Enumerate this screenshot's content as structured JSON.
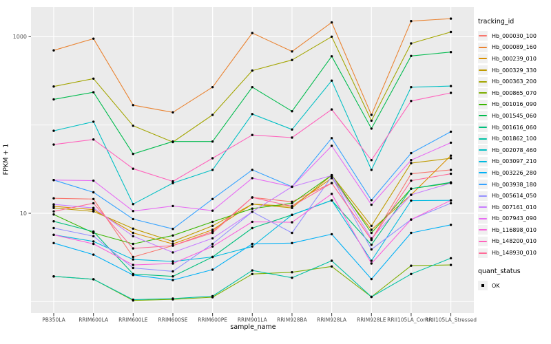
{
  "chart_data": {
    "type": "line",
    "title": "",
    "xlabel": "sample_name",
    "ylabel": "FPKM + 1",
    "x_categories": [
      "PB350LA",
      "RRIM600LA",
      "RRIM600LE",
      "RRIM600SE",
      "RRIM600PE",
      "RRIM901LA",
      "RRIM928BA",
      "RRIM928LA",
      "RRIM928LE",
      "RRII105LA_Control",
      "RRII105LA_Stressed"
    ],
    "y_axis": {
      "scale": "log10",
      "tick_labels": [
        "1000",
        "10"
      ],
      "tick_values": [
        1000,
        10
      ],
      "gridline_values": [
        1,
        10,
        100,
        1000
      ],
      "range_approx": [
        1,
        1700
      ]
    },
    "legend_position": "right",
    "grid": true,
    "panel_background": "#EBEBEB",
    "gridline_color": "#FFFFFF",
    "point_color": "#000000",
    "series": [
      {
        "name": "Hb_000030_100",
        "color": "#F8766D",
        "values": [
          14.8,
          14.5,
          3.2,
          4.3,
          6.2,
          15.1,
          13.5,
          22,
          5.0,
          28,
          31
        ]
      },
      {
        "name": "Hb_000089_160",
        "color": "#EA8331",
        "values": [
          700,
          950,
          168,
          139,
          268,
          1100,
          680,
          1450,
          130,
          1500,
          1600
        ]
      },
      {
        "name": "Hb_000239_010",
        "color": "#D89000",
        "values": [
          12.0,
          11.0,
          6.0,
          4.5,
          6.5,
          12.7,
          12.0,
          25,
          6.5,
          16.2,
          45
        ]
      },
      {
        "name": "Hb_000329_330",
        "color": "#C09B00",
        "values": [
          11.5,
          10.5,
          6.7,
          4.8,
          7.2,
          12.7,
          11.5,
          27,
          7.2,
          37,
          42
        ]
      },
      {
        "name": "Hb_000363_200",
        "color": "#A3A500",
        "values": [
          273,
          335,
          98,
          64,
          130,
          413,
          545,
          1000,
          112,
          840,
          1130
        ]
      },
      {
        "name": "Hb_000865_070",
        "color": "#7CAE00",
        "values": [
          1.93,
          1.79,
          1.03,
          1.06,
          1.12,
          2.05,
          2.15,
          2.5,
          1.13,
          2.55,
          2.6
        ]
      },
      {
        "name": "Hb_001016_090",
        "color": "#39B600",
        "values": [
          9.7,
          6.0,
          4.5,
          5.6,
          8.0,
          11.3,
          13.0,
          27,
          6.0,
          19,
          22
        ]
      },
      {
        "name": "Hb_001545_060",
        "color": "#00BB4E",
        "values": [
          195,
          235,
          47,
          65,
          65,
          268,
          143,
          600,
          91,
          605,
          670
        ]
      },
      {
        "name": "Hb_001616_060",
        "color": "#00BF7D",
        "values": [
          8.1,
          6.2,
          2.05,
          1.93,
          3.2,
          6.8,
          9.6,
          14,
          4.4,
          19,
          22.4
        ]
      },
      {
        "name": "Hb_001862_100",
        "color": "#00C1A3",
        "values": [
          1.93,
          1.79,
          1.05,
          1.08,
          1.15,
          2.25,
          1.86,
          2.9,
          1.13,
          2.05,
          3.1
        ]
      },
      {
        "name": "Hb_002078_460",
        "color": "#00BFC4",
        "values": [
          86,
          109,
          12.7,
          22,
          31,
          133,
          89,
          318,
          31,
          268,
          276
        ]
      },
      {
        "name": "Hb_003097_210",
        "color": "#00BAE0",
        "values": [
          5.7,
          4.8,
          3.0,
          2.85,
          3.2,
          4.2,
          9.6,
          14,
          2.9,
          13.9,
          14
        ]
      },
      {
        "name": "Hb_003226_280",
        "color": "#00B0F6",
        "values": [
          4.6,
          3.4,
          2.0,
          1.75,
          2.3,
          4.5,
          4.6,
          5.8,
          1.8,
          6.0,
          7.4
        ]
      },
      {
        "name": "Hb_003938_180",
        "color": "#35A2FF",
        "values": [
          23.8,
          17.3,
          8.6,
          6.65,
          14.5,
          31,
          20,
          71,
          14.1,
          48,
          84
        ]
      },
      {
        "name": "Hb_005614_050",
        "color": "#9590FF",
        "values": [
          6.8,
          5.5,
          2.4,
          2.2,
          4.5,
          10.4,
          6.0,
          26,
          3.9,
          8.5,
          13
        ]
      },
      {
        "name": "Hb_007161_010",
        "color": "#C77CFF",
        "values": [
          12.6,
          11.5,
          5.5,
          3.6,
          5.2,
          10.4,
          20,
          26.8,
          5.2,
          16.2,
          22
        ]
      },
      {
        "name": "Hb_007943_090",
        "color": "#E76BF3",
        "values": [
          23.8,
          23.4,
          10.6,
          12.1,
          10.7,
          25,
          20,
          58,
          12.5,
          40,
          63
        ]
      },
      {
        "name": "Hb_116898_010",
        "color": "#FA62DB",
        "values": [
          5.7,
          4.5,
          2.6,
          2.7,
          4.2,
          8.0,
          7.9,
          16.6,
          2.7,
          8.5,
          14
        ]
      },
      {
        "name": "Hb_148200_010",
        "color": "#FF62BC",
        "values": [
          60,
          68.6,
          32,
          23,
          42,
          77,
          72,
          150,
          40,
          187,
          231
        ]
      },
      {
        "name": "Hb_148930_010",
        "color": "#FF6A98",
        "values": [
          10.5,
          13.0,
          4.0,
          4.3,
          6.0,
          15.1,
          12.0,
          22,
          5.0,
          23.4,
          28
        ]
      }
    ]
  },
  "legend": {
    "tracking_title": "tracking_id",
    "quant_title": "quant_status",
    "quant_items": [
      {
        "label": "OK",
        "marker": "square",
        "color": "#000000"
      }
    ]
  }
}
